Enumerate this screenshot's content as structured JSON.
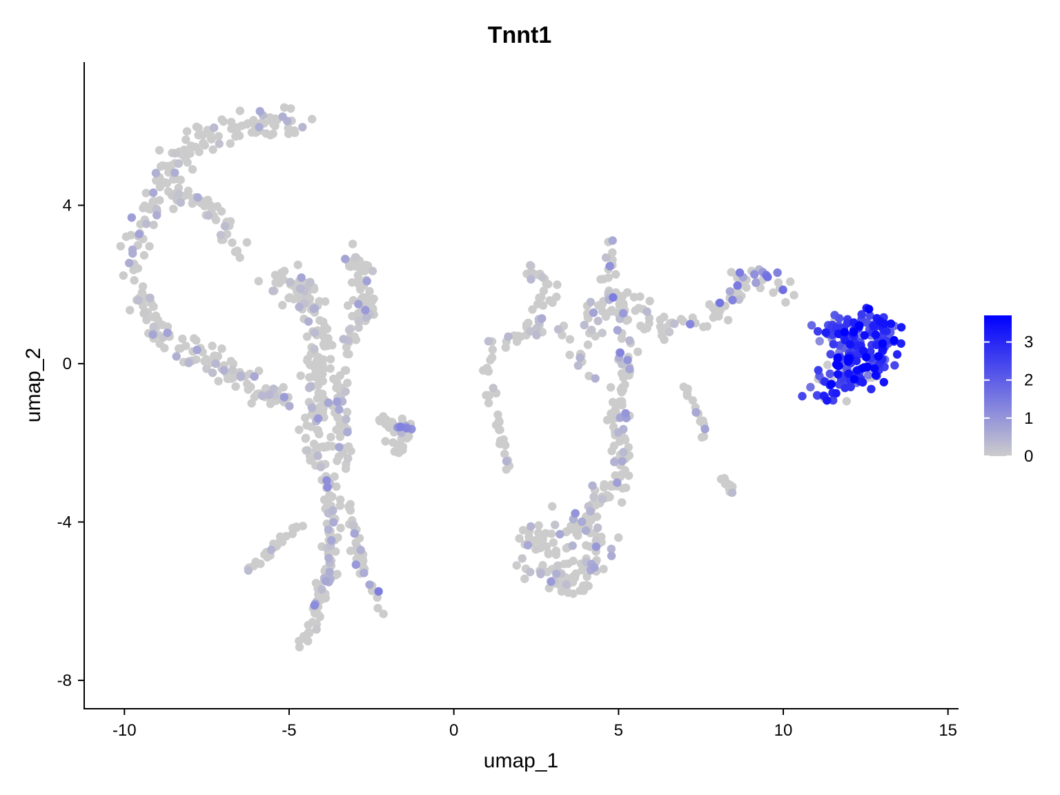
{
  "chart_data": {
    "type": "scatter",
    "title": "Tnnt1",
    "xlabel": "umap_1",
    "ylabel": "umap_2",
    "xlim": [
      -11.2,
      15.3
    ],
    "ylim": [
      -8.7,
      7.6
    ],
    "x_ticks": [
      -10,
      -5,
      0,
      5,
      10,
      15
    ],
    "x_tick_labels": [
      "-10",
      "-5",
      "0",
      "5",
      "10",
      "15"
    ],
    "y_ticks": [
      4,
      0,
      -4,
      -8
    ],
    "y_tick_labels": [
      "4",
      "0",
      "-4",
      "-8"
    ],
    "color_scale": {
      "low_color": "#cccccc",
      "high_color": "#0000ff",
      "min": 0,
      "max": 3.7,
      "ticks": [
        0,
        1,
        2,
        3
      ],
      "tick_labels": [
        "0",
        "1",
        "2",
        "3"
      ]
    },
    "legend_position": "right",
    "grid": false,
    "clusters": [
      {
        "path": [
          [
            -9.8,
            2.5
          ],
          [
            -9.5,
            3.5
          ],
          [
            -9.0,
            4.3
          ],
          [
            -8.6,
            5.0
          ],
          [
            -7.8,
            5.6
          ],
          [
            -7.0,
            5.8
          ],
          [
            -6.0,
            6.0
          ],
          [
            -5.0,
            6.2
          ],
          [
            -4.5,
            6.1
          ]
        ],
        "spread": 0.35,
        "n": 130,
        "expr_mean": 0.12,
        "expr_sd": 0.4
      },
      {
        "path": [
          [
            -9.8,
            2.5
          ],
          [
            -9.5,
            1.6
          ],
          [
            -9.0,
            1.0
          ],
          [
            -8.6,
            0.6
          ],
          [
            -8.0,
            0.3
          ],
          [
            -7.0,
            0.0
          ],
          [
            -6.4,
            -0.5
          ],
          [
            -5.7,
            -0.8
          ],
          [
            -5.0,
            -1.0
          ]
        ],
        "spread": 0.3,
        "n": 120,
        "expr_mean": 0.15,
        "expr_sd": 0.45
      },
      {
        "path": [
          [
            -8.5,
            4.2
          ],
          [
            -7.5,
            4.0
          ],
          [
            -6.9,
            3.4
          ],
          [
            -6.5,
            2.8
          ]
        ],
        "spread": 0.25,
        "n": 45,
        "expr_mean": 0.12,
        "expr_sd": 0.35
      },
      {
        "path": [
          [
            -5.5,
            2.0
          ],
          [
            -4.8,
            2.1
          ],
          [
            -4.2,
            1.4
          ],
          [
            -4.0,
            0.6
          ],
          [
            -4.2,
            -0.5
          ],
          [
            -4.3,
            -1.6
          ],
          [
            -4.0,
            -2.5
          ]
        ],
        "spread": 0.35,
        "n": 150,
        "expr_mean": 0.1,
        "expr_sd": 0.35
      },
      {
        "path": [
          [
            -3.3,
            2.6
          ],
          [
            -2.7,
            2.4
          ],
          [
            -2.7,
            1.6
          ],
          [
            -2.6,
            1.2
          ],
          [
            -2.4,
            1.2
          ]
        ],
        "spread": 0.2,
        "n": 55,
        "expr_mean": 0.25,
        "expr_sd": 0.5
      },
      {
        "path": [
          [
            -2.9,
            1.5
          ],
          [
            -3.2,
            0.6
          ],
          [
            -3.5,
            -0.4
          ],
          [
            -3.5,
            -1.5
          ],
          [
            -3.4,
            -2.6
          ]
        ],
        "spread": 0.25,
        "n": 60,
        "expr_mean": 0.12,
        "expr_sd": 0.35
      },
      {
        "path": [
          [
            -4.0,
            -2.5
          ],
          [
            -3.7,
            -3.8
          ],
          [
            -3.7,
            -4.8
          ],
          [
            -4.0,
            -5.8
          ],
          [
            -4.3,
            -6.6
          ],
          [
            -4.5,
            -7.2
          ]
        ],
        "spread": 0.22,
        "n": 100,
        "expr_mean": 0.2,
        "expr_sd": 0.45
      },
      {
        "path": [
          [
            -3.2,
            -3.5
          ],
          [
            -2.9,
            -4.8
          ],
          [
            -2.6,
            -5.6
          ],
          [
            -2.3,
            -6.0
          ],
          [
            -2.1,
            -6.3
          ]
        ],
        "spread": 0.14,
        "n": 40,
        "expr_mean": 0.35,
        "expr_sd": 0.55
      },
      {
        "path": [
          [
            -4.6,
            -4.0
          ],
          [
            -5.4,
            -4.6
          ],
          [
            -6.0,
            -5.1
          ],
          [
            -6.3,
            -5.2
          ]
        ],
        "spread": 0.12,
        "n": 25,
        "expr_mean": 0.2,
        "expr_sd": 0.4
      },
      {
        "path": [
          [
            -2.3,
            -1.3
          ],
          [
            -1.9,
            -1.7
          ],
          [
            -1.4,
            -1.5
          ],
          [
            -1.2,
            -1.8
          ],
          [
            -1.6,
            -2.1
          ],
          [
            -2.1,
            -2.0
          ]
        ],
        "spread": 0.15,
        "n": 35,
        "expr_mean": 0.45,
        "expr_sd": 0.6
      },
      {
        "path": [
          [
            1.2,
            0.6
          ],
          [
            1.0,
            -0.3
          ],
          [
            1.2,
            -1.2
          ],
          [
            1.5,
            -2.0
          ],
          [
            1.6,
            -2.6
          ]
        ],
        "spread": 0.12,
        "n": 30,
        "expr_mean": 0.15,
        "expr_sd": 0.4
      },
      {
        "path": [
          [
            2.3,
            2.4
          ],
          [
            2.7,
            2.2
          ],
          [
            3.0,
            1.8
          ],
          [
            2.5,
            1.0
          ],
          [
            2.0,
            0.8
          ],
          [
            1.5,
            0.4
          ]
        ],
        "spread": 0.25,
        "n": 45,
        "expr_mean": 0.1,
        "expr_sd": 0.3
      },
      {
        "path": [
          [
            4.6,
            3.0
          ],
          [
            4.7,
            2.0
          ],
          [
            5.1,
            1.2
          ],
          [
            5.2,
            0.2
          ],
          [
            5.1,
            -0.8
          ],
          [
            5.0,
            -1.8
          ],
          [
            5.2,
            -2.6
          ],
          [
            5.0,
            -3.0
          ],
          [
            4.3,
            -3.6
          ],
          [
            3.7,
            -4.1
          ]
        ],
        "spread": 0.3,
        "n": 150,
        "expr_mean": 0.3,
        "expr_sd": 0.5
      },
      {
        "path": [
          [
            3.0,
            -4.0
          ],
          [
            3.8,
            -4.3
          ],
          [
            4.6,
            -4.8
          ],
          [
            4.0,
            -5.3
          ],
          [
            3.0,
            -5.5
          ],
          [
            2.5,
            -5.0
          ],
          [
            2.3,
            -4.4
          ],
          [
            3.3,
            -4.9
          ]
        ],
        "spread": 0.35,
        "n": 110,
        "expr_mean": 0.2,
        "expr_sd": 0.45
      },
      {
        "path": [
          [
            3.4,
            1.2
          ],
          [
            3.6,
            0.3
          ],
          [
            4.0,
            -0.3
          ],
          [
            4.2,
            1.5
          ],
          [
            5.8,
            1.6
          ],
          [
            6.1,
            0.6
          ]
        ],
        "spread": 0.3,
        "n": 50,
        "expr_mean": 0.15,
        "expr_sd": 0.4
      },
      {
        "path": [
          [
            6.0,
            0.8
          ],
          [
            7.0,
            1.0
          ],
          [
            7.8,
            1.2
          ],
          [
            8.5,
            1.8
          ],
          [
            9.2,
            2.3
          ],
          [
            9.8,
            2.0
          ],
          [
            10.4,
            1.8
          ]
        ],
        "spread": 0.25,
        "n": 75,
        "expr_mean": 0.75,
        "expr_sd": 0.7
      },
      {
        "path": [
          [
            7.0,
            -0.4
          ],
          [
            7.2,
            -0.9
          ],
          [
            7.5,
            -1.4
          ],
          [
            7.6,
            -2.0
          ]
        ],
        "spread": 0.1,
        "n": 15,
        "expr_mean": 0.2,
        "expr_sd": 0.4
      },
      {
        "path": [
          [
            7.9,
            -2.6
          ],
          [
            8.2,
            -2.9
          ],
          [
            8.5,
            -3.3
          ]
        ],
        "spread": 0.08,
        "n": 12,
        "expr_mean": 0.3,
        "expr_sd": 0.5
      },
      {
        "path": [
          [
            11.3,
            -0.9
          ],
          [
            11.5,
            -0.4
          ],
          [
            11.8,
            0.3
          ],
          [
            12.3,
            0.8
          ],
          [
            12.8,
            1.0
          ],
          [
            13.2,
            0.7
          ],
          [
            12.9,
            0.1
          ],
          [
            12.3,
            -0.3
          ],
          [
            11.8,
            0.9
          ],
          [
            11.2,
            0.7
          ]
        ],
        "spread": 0.38,
        "n": 220,
        "expr_mean": 2.7,
        "expr_sd": 0.7
      }
    ]
  }
}
